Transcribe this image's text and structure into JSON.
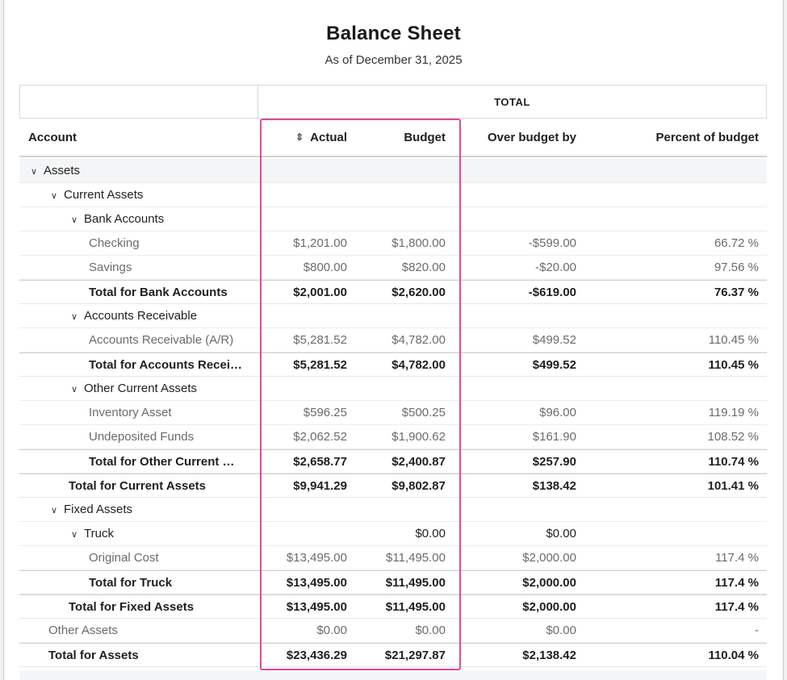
{
  "report": {
    "title": "Balance Sheet",
    "subtitle": "As of December 31, 2025",
    "group_header": "TOTAL",
    "columns": {
      "account": "Account",
      "actual": "Actual",
      "budget": "Budget",
      "over": "Over budget by",
      "percent": "Percent of budget"
    }
  },
  "icons": {
    "sort": "sort-icon",
    "expand": "chevron-down-icon"
  },
  "colors": {
    "highlight": "#e0489a",
    "section_bg": "#f4f5f6"
  },
  "rows": [
    {
      "type": "section",
      "level": 0,
      "label": "Assets"
    },
    {
      "type": "section",
      "level": 1,
      "label": "Current Assets"
    },
    {
      "type": "section",
      "level": 2,
      "label": "Bank Accounts"
    },
    {
      "type": "detail",
      "level": 3,
      "label": "Checking",
      "actual": "$1,201.00",
      "budget": "$1,800.00",
      "over": "-$599.00",
      "pct": "66.72 %"
    },
    {
      "type": "detail",
      "level": 3,
      "label": "Savings",
      "actual": "$800.00",
      "budget": "$820.00",
      "over": "-$20.00",
      "pct": "97.56 %"
    },
    {
      "type": "total",
      "level": 3,
      "label": "Total for Bank Accounts",
      "actual": "$2,001.00",
      "budget": "$2,620.00",
      "over": "-$619.00",
      "pct": "76.37 %"
    },
    {
      "type": "section",
      "level": 2,
      "label": "Accounts Receivable"
    },
    {
      "type": "detail",
      "level": 3,
      "label": "Accounts Receivable (A/R)",
      "actual": "$5,281.52",
      "budget": "$4,782.00",
      "over": "$499.52",
      "pct": "110.45 %"
    },
    {
      "type": "total",
      "level": 3,
      "label": "Total for Accounts Recei…",
      "actual": "$5,281.52",
      "budget": "$4,782.00",
      "over": "$499.52",
      "pct": "110.45 %"
    },
    {
      "type": "section",
      "level": 2,
      "label": "Other Current Assets"
    },
    {
      "type": "detail",
      "level": 3,
      "label": "Inventory Asset",
      "actual": "$596.25",
      "budget": "$500.25",
      "over": "$96.00",
      "pct": "119.19 %"
    },
    {
      "type": "detail",
      "level": 3,
      "label": "Undeposited Funds",
      "actual": "$2,062.52",
      "budget": "$1,900.62",
      "over": "$161.90",
      "pct": "108.52 %"
    },
    {
      "type": "total",
      "level": 3,
      "label": "Total for Other Current …",
      "actual": "$2,658.77",
      "budget": "$2,400.87",
      "over": "$257.90",
      "pct": "110.74 %"
    },
    {
      "type": "total",
      "level": 2,
      "label": "Total for Current Assets",
      "actual": "$9,941.29",
      "budget": "$9,802.87",
      "over": "$138.42",
      "pct": "101.41 %"
    },
    {
      "type": "section",
      "level": 1,
      "label": "Fixed Assets"
    },
    {
      "type": "section",
      "level": 2,
      "label": "Truck",
      "actual": "",
      "budget": "$0.00",
      "over": "$0.00",
      "pct": ""
    },
    {
      "type": "detail",
      "level": 3,
      "label": "Original Cost",
      "actual": "$13,495.00",
      "budget": "$11,495.00",
      "over": "$2,000.00",
      "pct": "117.4 %"
    },
    {
      "type": "total",
      "level": 3,
      "label": "Total for Truck",
      "actual": "$13,495.00",
      "budget": "$11,495.00",
      "over": "$2,000.00",
      "pct": "117.4 %"
    },
    {
      "type": "total",
      "level": 2,
      "label": "Total for Fixed Assets",
      "actual": "$13,495.00",
      "budget": "$11,495.00",
      "over": "$2,000.00",
      "pct": "117.4 %"
    },
    {
      "type": "detail",
      "level": 1,
      "label": "Other Assets",
      "actual": "$0.00",
      "budget": "$0.00",
      "over": "$0.00",
      "pct": "-"
    },
    {
      "type": "total",
      "level": 1,
      "label": "Total for Assets",
      "actual": "$23,436.29",
      "budget": "$21,297.87",
      "over": "$2,138.42",
      "pct": "110.04 %"
    }
  ]
}
